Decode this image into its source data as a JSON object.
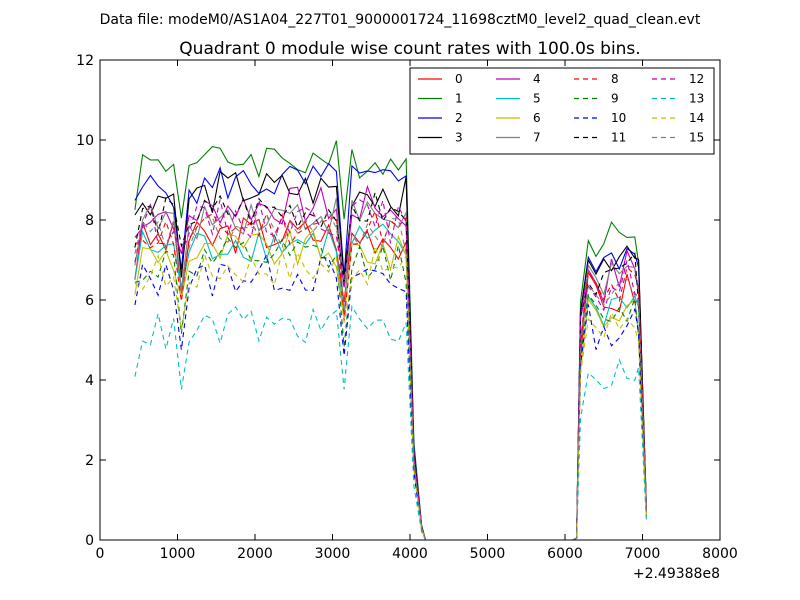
{
  "figure": {
    "suptitle": "Data file: modeM0/AS1A04_227T01_9000001724_11698cztM0_level2_quad_clean.evt"
  },
  "chart_data": {
    "type": "line",
    "title": "Quadrant 0 module wise count rates with 100.0s bins.",
    "xlabel": "",
    "ylabel": "",
    "x_offset_label": "+2.49388e8",
    "xlim": [
      0,
      8000
    ],
    "ylim": [
      0,
      12
    ],
    "xticks": [
      "0",
      "1000",
      "2000",
      "3000",
      "4000",
      "5000",
      "6000",
      "7000",
      "8000"
    ],
    "yticks": [
      "0",
      "2",
      "4",
      "6",
      "8",
      "10",
      "12"
    ],
    "grid": false,
    "legend_position": "top-right",
    "legend_columns": 4,
    "gap_x": [
      4300,
      4400,
      4500,
      4600,
      4700,
      4800,
      4900,
      5000,
      5100,
      5200,
      5300,
      5400,
      5500,
      5600,
      5700,
      5800,
      5900,
      6000,
      6100
    ],
    "segment1_x": [
      450,
      550,
      650,
      750,
      850,
      950,
      1050,
      1150,
      1250,
      1350,
      1450,
      1550,
      1650,
      1750,
      1850,
      1950,
      2050,
      2150,
      2250,
      2350,
      2450,
      2550,
      2650,
      2750,
      2850,
      2950,
      3050,
      3150,
      3250,
      3350,
      3450,
      3550,
      3650,
      3750,
      3850,
      3950,
      4050,
      4150,
      4200
    ],
    "segment2_x": [
      6150,
      6200,
      6300,
      6400,
      6500,
      6600,
      6700,
      6800,
      6900,
      6950,
      7050
    ],
    "series": [
      {
        "name": "0",
        "color": "#ff0000",
        "dash": false,
        "base": 7.5
      },
      {
        "name": "1",
        "color": "#008000",
        "dash": false,
        "base": 9.4
      },
      {
        "name": "2",
        "color": "#0000ff",
        "dash": false,
        "base": 8.8
      },
      {
        "name": "3",
        "color": "#000000",
        "dash": false,
        "base": 8.6
      },
      {
        "name": "4",
        "color": "#bf00bf",
        "dash": false,
        "base": 8.2
      },
      {
        "name": "5",
        "color": "#00bfbf",
        "dash": false,
        "base": 7.3
      },
      {
        "name": "6",
        "color": "#bfbf00",
        "dash": false,
        "base": 7.1
      },
      {
        "name": "7",
        "color": "#808080",
        "dash": false,
        "base": 8.0
      },
      {
        "name": "8",
        "color": "#ff0000",
        "dash": true,
        "base": 7.7
      },
      {
        "name": "9",
        "color": "#008000",
        "dash": true,
        "base": 6.9
      },
      {
        "name": "10",
        "color": "#0000ff",
        "dash": true,
        "base": 6.5
      },
      {
        "name": "11",
        "color": "#000000",
        "dash": true,
        "base": 8.1
      },
      {
        "name": "12",
        "color": "#bf00bf",
        "dash": true,
        "base": 7.9
      },
      {
        "name": "13",
        "color": "#00bfbf",
        "dash": true,
        "base": 5.2
      },
      {
        "name": "14",
        "color": "#bfbf00",
        "dash": true,
        "base": 6.7
      },
      {
        "name": "15",
        "color": "#808080",
        "dash": true,
        "base": 7.6
      }
    ]
  }
}
